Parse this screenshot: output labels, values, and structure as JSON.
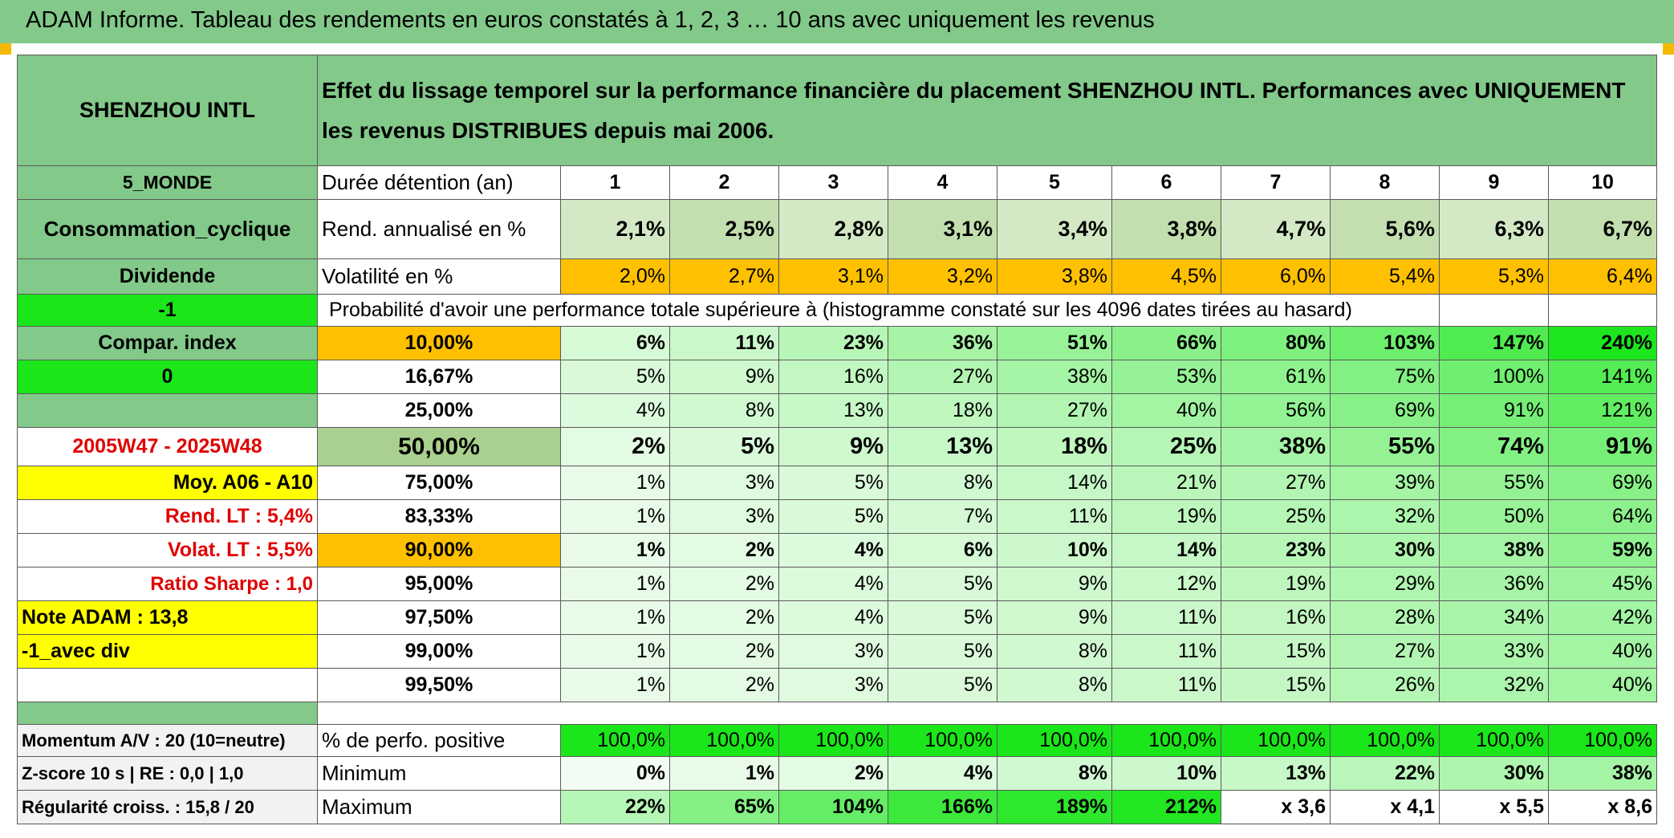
{
  "title": "ADAM Informe. Tableau des rendements en euros constatés à 1, 2, 3 … 10 ans avec uniquement les revenus",
  "header": {
    "name": "SHENZHOU INTL",
    "description": "Effet du lissage temporel sur la performance financière du placement SHENZHOU INTL. Performances avec UNIQUEMENT les revenus DISTRIBUES depuis mai 2006."
  },
  "left": {
    "region": "5_MONDE",
    "sector": "Consommation_cyclique",
    "type": "Dividende",
    "minus_one": "-1",
    "compar": "Compar. index",
    "zero": "0",
    "period": "2005W47 - 2025W48",
    "moy": "Moy. A06 - A10",
    "rend_lt": "Rend. LT :   5,4%",
    "volat_lt": "Volat. LT :   5,5%",
    "sharpe": "Ratio Sharpe :   1,0",
    "note": "Note ADAM : 13,8",
    "avec_div": "-1_avec div",
    "momentum": "Momentum A/V : 20 (10=neutre)",
    "zscore": "Z-score 10 s | RE : 0,0 | 1,0",
    "regularite": "Régularité croiss. : 15,8 / 20"
  },
  "labels": {
    "duree": "Durée détention (an)",
    "rend": "Rend. annualisé en %",
    "volat": "Volatilité en %",
    "proba": "Probabilité d'avoir une performance totale supérieure à (histogramme constaté sur les 4096 dates tirées au hasard)",
    "perfo_pos": "% de perfo. positive",
    "minimum": "Minimum",
    "maximum": "Maximum"
  },
  "years": [
    "1",
    "2",
    "3",
    "4",
    "5",
    "6",
    "7",
    "8",
    "9",
    "10"
  ],
  "rend": [
    "2,1%",
    "2,5%",
    "2,8%",
    "3,1%",
    "3,4%",
    "3,8%",
    "4,7%",
    "5,6%",
    "6,3%",
    "6,7%"
  ],
  "volat": [
    "2,0%",
    "2,7%",
    "3,1%",
    "3,2%",
    "3,8%",
    "4,5%",
    "6,0%",
    "5,4%",
    "5,3%",
    "6,4%"
  ],
  "percentiles": [
    {
      "p": "10,00%",
      "v": [
        "6%",
        "11%",
        "23%",
        "36%",
        "51%",
        "66%",
        "80%",
        "103%",
        "147%",
        "240%"
      ]
    },
    {
      "p": "16,67%",
      "v": [
        "5%",
        "9%",
        "16%",
        "27%",
        "38%",
        "53%",
        "61%",
        "75%",
        "100%",
        "141%"
      ]
    },
    {
      "p": "25,00%",
      "v": [
        "4%",
        "8%",
        "13%",
        "18%",
        "27%",
        "40%",
        "56%",
        "69%",
        "91%",
        "121%"
      ]
    },
    {
      "p": "50,00%",
      "v": [
        "2%",
        "5%",
        "9%",
        "13%",
        "18%",
        "25%",
        "38%",
        "55%",
        "74%",
        "91%"
      ]
    },
    {
      "p": "75,00%",
      "v": [
        "1%",
        "3%",
        "5%",
        "8%",
        "14%",
        "21%",
        "27%",
        "39%",
        "55%",
        "69%"
      ]
    },
    {
      "p": "83,33%",
      "v": [
        "1%",
        "3%",
        "5%",
        "7%",
        "11%",
        "19%",
        "25%",
        "32%",
        "50%",
        "64%"
      ]
    },
    {
      "p": "90,00%",
      "v": [
        "1%",
        "2%",
        "4%",
        "6%",
        "10%",
        "14%",
        "23%",
        "30%",
        "38%",
        "59%"
      ]
    },
    {
      "p": "95,00%",
      "v": [
        "1%",
        "2%",
        "4%",
        "5%",
        "9%",
        "12%",
        "19%",
        "29%",
        "36%",
        "45%"
      ]
    },
    {
      "p": "97,50%",
      "v": [
        "1%",
        "2%",
        "4%",
        "5%",
        "9%",
        "11%",
        "16%",
        "28%",
        "34%",
        "42%"
      ]
    },
    {
      "p": "99,00%",
      "v": [
        "1%",
        "2%",
        "3%",
        "5%",
        "8%",
        "11%",
        "15%",
        "27%",
        "33%",
        "40%"
      ]
    },
    {
      "p": "99,50%",
      "v": [
        "1%",
        "2%",
        "3%",
        "5%",
        "8%",
        "11%",
        "15%",
        "26%",
        "32%",
        "40%"
      ]
    }
  ],
  "perfo_pos": [
    "100,0%",
    "100,0%",
    "100,0%",
    "100,0%",
    "100,0%",
    "100,0%",
    "100,0%",
    "100,0%",
    "100,0%",
    "100,0%"
  ],
  "minimum": [
    "0%",
    "1%",
    "2%",
    "4%",
    "8%",
    "10%",
    "13%",
    "22%",
    "30%",
    "38%"
  ],
  "maximum": [
    "22%",
    "65%",
    "104%",
    "166%",
    "189%",
    "212%",
    "x 3,6",
    "x 4,1",
    "x 5,5",
    "x 8,6"
  ],
  "colors": {
    "header_green": "#82c98a",
    "bright_green": "#1ae61a",
    "orange": "#ffc000",
    "yellow": "#ffff00",
    "red_text": "#e00000"
  }
}
